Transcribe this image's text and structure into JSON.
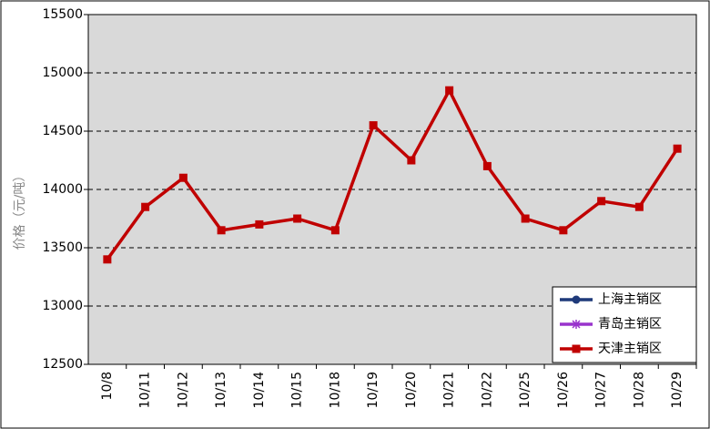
{
  "chart_data": {
    "type": "line",
    "y_label": "价格（元/吨）",
    "categories": [
      "10/8",
      "10/11",
      "10/12",
      "10/13",
      "10/14",
      "10/15",
      "10/18",
      "10/19",
      "10/20",
      "10/21",
      "10/22",
      "10/25",
      "10/26",
      "10/27",
      "10/28",
      "10/29"
    ],
    "series": [
      {
        "name": "上海主销区",
        "color": "#1f3a7a",
        "marker": "circle",
        "values": [
          null,
          null,
          null,
          null,
          null,
          null,
          null,
          null,
          null,
          null,
          null,
          null,
          null,
          null,
          null,
          null
        ]
      },
      {
        "name": "青岛主销区",
        "color": "#9933cc",
        "marker": "asterisk",
        "values": [
          null,
          null,
          null,
          null,
          null,
          null,
          null,
          null,
          null,
          null,
          null,
          null,
          null,
          null,
          null,
          null
        ]
      },
      {
        "name": "天津主销区",
        "color": "#c00000",
        "marker": "square",
        "values": [
          13400,
          13850,
          14100,
          13650,
          13700,
          13750,
          13650,
          14550,
          14250,
          14850,
          14200,
          13750,
          13650,
          13900,
          13850,
          14350
        ]
      }
    ],
    "ylim": [
      12500,
      15500
    ],
    "yticks": [
      12500,
      13000,
      13500,
      14000,
      14500,
      15000,
      15500
    ],
    "grid": true,
    "legend": "lower right"
  }
}
